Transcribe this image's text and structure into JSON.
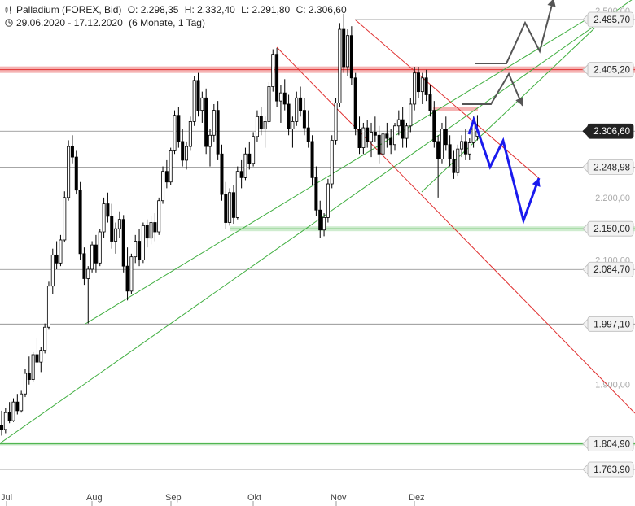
{
  "header": {
    "instrument": "Palladium (FOREX, Bid)",
    "open": "O: 2.298,35",
    "high": "H: 2.332,40",
    "low": "L: 2.291,80",
    "close": "C: 2.306,60",
    "range": "29.06.2020 - 17.12.2020",
    "period": "(6 Monate, 1 Tag)"
  },
  "chart_data": {
    "type": "candlestick",
    "x_axis": {
      "ticks": [
        "Jul",
        "Aug",
        "Sep",
        "Okt",
        "Nov",
        "Dez"
      ]
    },
    "y_axis": {
      "range": [
        1740,
        2510
      ],
      "ticks": [
        {
          "value": 2500,
          "label": "2.500,00"
        },
        {
          "value": 2200,
          "label": "2.200,00"
        },
        {
          "value": 2100,
          "label": "2.100,00"
        },
        {
          "value": 1900,
          "label": "1.900,00"
        }
      ]
    },
    "levels": [
      {
        "value": 2485.7,
        "label": "2.485,70",
        "style": "thin-gray"
      },
      {
        "value": 2405.2,
        "label": "2.405,20",
        "style": "red-band"
      },
      {
        "value": 2306.6,
        "label": "2.306,60",
        "style": "current"
      },
      {
        "value": 2248.98,
        "label": "2.248,98",
        "style": "thin-gray"
      },
      {
        "value": 2150.0,
        "label": "2.150,00",
        "style": "green-band"
      },
      {
        "value": 2084.7,
        "label": "2.084,70",
        "style": "thin-gray"
      },
      {
        "value": 1997.1,
        "label": "1.997,10",
        "style": "thin-gray"
      },
      {
        "value": 1804.9,
        "label": "1.804,90",
        "style": "green-thin"
      },
      {
        "value": 1763.9,
        "label": "1.763,90",
        "style": "thin-gray"
      }
    ],
    "candles": [
      [
        1835,
        1858,
        1818,
        1828
      ],
      [
        1828,
        1862,
        1822,
        1855
      ],
      [
        1855,
        1872,
        1838,
        1842
      ],
      [
        1842,
        1878,
        1840,
        1872
      ],
      [
        1872,
        1885,
        1852,
        1858
      ],
      [
        1858,
        1890,
        1855,
        1885
      ],
      [
        1885,
        1925,
        1880,
        1918
      ],
      [
        1918,
        1945,
        1900,
        1908
      ],
      [
        1908,
        1952,
        1905,
        1948
      ],
      [
        1948,
        1975,
        1930,
        1936
      ],
      [
        1936,
        1960,
        1920,
        1955
      ],
      [
        1955,
        1998,
        1950,
        1992
      ],
      [
        1992,
        2065,
        1988,
        2058
      ],
      [
        2058,
        2118,
        2045,
        2108
      ],
      [
        2108,
        2130,
        2085,
        2095
      ],
      [
        2095,
        2140,
        2090,
        2132
      ],
      [
        2132,
        2210,
        2128,
        2200
      ],
      [
        2200,
        2292,
        2195,
        2282
      ],
      [
        2282,
        2300,
        2255,
        2265
      ],
      [
        2265,
        2275,
        2205,
        2212
      ],
      [
        2212,
        2225,
        2100,
        2110
      ],
      [
        2110,
        2120,
        2060,
        2070
      ],
      [
        2070,
        2090,
        1998,
        2085
      ],
      [
        2085,
        2130,
        2080,
        2124
      ],
      [
        2124,
        2140,
        2080,
        2095
      ],
      [
        2095,
        2150,
        2090,
        2145
      ],
      [
        2145,
        2200,
        2135,
        2190
      ],
      [
        2190,
        2208,
        2160,
        2170
      ],
      [
        2170,
        2190,
        2118,
        2130
      ],
      [
        2130,
        2160,
        2110,
        2150
      ],
      [
        2150,
        2178,
        2135,
        2165
      ],
      [
        2165,
        2172,
        2080,
        2090
      ],
      [
        2090,
        2120,
        2035,
        2050
      ],
      [
        2050,
        2110,
        2045,
        2105
      ],
      [
        2105,
        2140,
        2095,
        2130
      ],
      [
        2130,
        2150,
        2090,
        2100
      ],
      [
        2100,
        2160,
        2095,
        2155
      ],
      [
        2155,
        2165,
        2120,
        2135
      ],
      [
        2135,
        2170,
        2125,
        2160
      ],
      [
        2160,
        2175,
        2130,
        2145
      ],
      [
        2145,
        2200,
        2140,
        2195
      ],
      [
        2195,
        2250,
        2190,
        2242
      ],
      [
        2242,
        2260,
        2215,
        2225
      ],
      [
        2225,
        2280,
        2220,
        2275
      ],
      [
        2275,
        2340,
        2270,
        2332
      ],
      [
        2332,
        2345,
        2280,
        2290
      ],
      [
        2290,
        2310,
        2250,
        2260
      ],
      [
        2260,
        2290,
        2245,
        2282
      ],
      [
        2282,
        2330,
        2275,
        2322
      ],
      [
        2322,
        2395,
        2315,
        2388
      ],
      [
        2388,
        2400,
        2330,
        2340
      ],
      [
        2340,
        2370,
        2320,
        2360
      ],
      [
        2360,
        2375,
        2270,
        2282
      ],
      [
        2282,
        2310,
        2250,
        2300
      ],
      [
        2300,
        2350,
        2290,
        2340
      ],
      [
        2340,
        2355,
        2260,
        2270
      ],
      [
        2270,
        2285,
        2195,
        2205
      ],
      [
        2205,
        2225,
        2150,
        2160
      ],
      [
        2160,
        2215,
        2155,
        2208
      ],
      [
        2208,
        2220,
        2158,
        2168
      ],
      [
        2168,
        2250,
        2165,
        2242
      ],
      [
        2242,
        2260,
        2215,
        2232
      ],
      [
        2232,
        2280,
        2228,
        2270
      ],
      [
        2270,
        2290,
        2245,
        2255
      ],
      [
        2255,
        2305,
        2250,
        2298
      ],
      [
        2298,
        2340,
        2290,
        2330
      ],
      [
        2330,
        2345,
        2300,
        2310
      ],
      [
        2310,
        2330,
        2280,
        2322
      ],
      [
        2322,
        2385,
        2318,
        2378
      ],
      [
        2378,
        2438,
        2370,
        2430
      ],
      [
        2430,
        2440,
        2345,
        2355
      ],
      [
        2355,
        2380,
        2320,
        2368
      ],
      [
        2368,
        2390,
        2340,
        2350
      ],
      [
        2350,
        2365,
        2300,
        2310
      ],
      [
        2310,
        2330,
        2280,
        2322
      ],
      [
        2322,
        2370,
        2315,
        2360
      ],
      [
        2360,
        2378,
        2330,
        2340
      ],
      [
        2340,
        2360,
        2300,
        2312
      ],
      [
        2312,
        2340,
        2280,
        2290
      ],
      [
        2290,
        2300,
        2220,
        2232
      ],
      [
        2232,
        2250,
        2170,
        2180
      ],
      [
        2180,
        2195,
        2135,
        2148
      ],
      [
        2148,
        2175,
        2138,
        2168
      ],
      [
        2168,
        2230,
        2160,
        2222
      ],
      [
        2222,
        2300,
        2215,
        2292
      ],
      [
        2292,
        2360,
        2285,
        2352
      ],
      [
        2352,
        2480,
        2345,
        2470
      ],
      [
        2470,
        2495,
        2400,
        2410
      ],
      [
        2410,
        2470,
        2395,
        2460
      ],
      [
        2460,
        2475,
        2380,
        2392
      ],
      [
        2392,
        2400,
        2300,
        2310
      ],
      [
        2310,
        2330,
        2270,
        2280
      ],
      [
        2280,
        2320,
        2270,
        2312
      ],
      [
        2312,
        2325,
        2280,
        2290
      ],
      [
        2290,
        2320,
        2265,
        2305
      ],
      [
        2305,
        2330,
        2290,
        2300
      ],
      [
        2300,
        2315,
        2255,
        2270
      ],
      [
        2270,
        2310,
        2260,
        2302
      ],
      [
        2302,
        2320,
        2280,
        2295
      ],
      [
        2295,
        2310,
        2270,
        2285
      ],
      [
        2285,
        2320,
        2275,
        2315
      ],
      [
        2315,
        2340,
        2300,
        2325
      ],
      [
        2325,
        2345,
        2280,
        2295
      ],
      [
        2295,
        2320,
        2280,
        2315
      ],
      [
        2315,
        2360,
        2305,
        2350
      ],
      [
        2350,
        2410,
        2340,
        2400
      ],
      [
        2400,
        2410,
        2360,
        2370
      ],
      [
        2370,
        2400,
        2350,
        2392
      ],
      [
        2392,
        2405,
        2355,
        2365
      ],
      [
        2365,
        2380,
        2330,
        2340
      ],
      [
        2340,
        2355,
        2280,
        2290
      ],
      [
        2290,
        2300,
        2200,
        2262
      ],
      [
        2262,
        2320,
        2255,
        2310
      ],
      [
        2310,
        2330,
        2275,
        2285
      ],
      [
        2285,
        2300,
        2250,
        2262
      ],
      [
        2262,
        2275,
        2230,
        2240
      ],
      [
        2240,
        2285,
        2235,
        2278
      ],
      [
        2278,
        2300,
        2265,
        2290
      ],
      [
        2290,
        2310,
        2260,
        2270
      ],
      [
        2270,
        2295,
        2260,
        2288
      ],
      [
        2288,
        2330,
        2280,
        2322
      ],
      [
        2298.35,
        2332.4,
        2291.8,
        2306.6
      ]
    ]
  },
  "colors": {
    "candle": "#000000",
    "red_line": "#e03030",
    "green_line": "#3fae3f",
    "red_band": "#f5b3b3",
    "green_band": "#cfeccf",
    "blue_arrow": "#1a1aee",
    "gray_arrow": "#555555",
    "label_dark": "#222222"
  }
}
